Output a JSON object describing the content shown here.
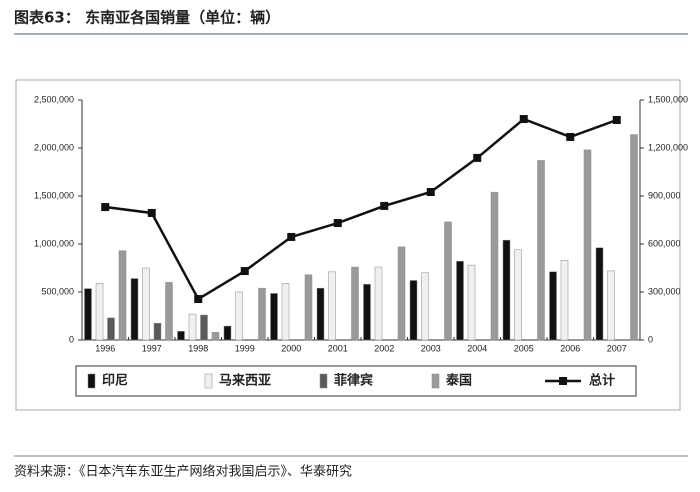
{
  "title": "图表63： 东南亚各国销量（单位：辆）",
  "source": "资料来源：《日本汽车东亚生产网络对我国启示》、华泰研究",
  "chart_data": {
    "type": "bar",
    "categories": [
      "1996",
      "1997",
      "1998",
      "1999",
      "2000",
      "2001",
      "2002",
      "2003",
      "2004",
      "2005",
      "2006",
      "2007"
    ],
    "series": [
      {
        "name": "印尼",
        "color": "#111111",
        "values": [
          535000,
          640000,
          90000,
          145000,
          485000,
          540000,
          580000,
          620000,
          820000,
          1040000,
          710000,
          960000
        ]
      },
      {
        "name": "马来西亚",
        "color": "#f0f0f0",
        "values": [
          590000,
          750000,
          270000,
          500000,
          590000,
          710000,
          760000,
          700000,
          780000,
          940000,
          830000,
          720000
        ]
      },
      {
        "name": "菲律宾",
        "color": "#5a5a5a",
        "values": [
          230000,
          175000,
          260000,
          null,
          null,
          null,
          null,
          null,
          null,
          null,
          null,
          null
        ]
      },
      {
        "name": "泰国",
        "color": "#9a9a9a",
        "values": [
          930000,
          600000,
          80000,
          540000,
          680000,
          760000,
          970000,
          1230000,
          1540000,
          1870000,
          1980000,
          2140000
        ]
      },
      {
        "name": "总计",
        "color": "#111111",
        "type": "line",
        "axis": "y2",
        "values": [
          831000,
          794000,
          256000,
          431000,
          644000,
          731000,
          838000,
          925000,
          1138000,
          1381000,
          1269000,
          1375000
        ]
      }
    ],
    "ylim": [
      0,
      2500000
    ],
    "yticks": [
      0,
      {
        "value": 500000,
        "label": "500,000"
      },
      {
        "value": 1000000,
        "label": "1,000,000"
      },
      {
        "value": 1500000,
        "label": "1,500,000"
      },
      {
        "value": 2000000,
        "label": "2,000,000"
      },
      {
        "value": 2500000,
        "label": "2,500,000"
      }
    ],
    "y2lim": [
      0,
      1500000
    ],
    "y2ticks": [
      0,
      {
        "value": 300000,
        "label": "300,000"
      },
      {
        "value": 600000,
        "label": "600,000"
      },
      {
        "value": 900000,
        "label": "900,000"
      },
      {
        "value": 1200000,
        "label": "1,200,000"
      },
      {
        "value": 1500000,
        "label": "1,500,000"
      }
    ],
    "legend": "bottom"
  }
}
